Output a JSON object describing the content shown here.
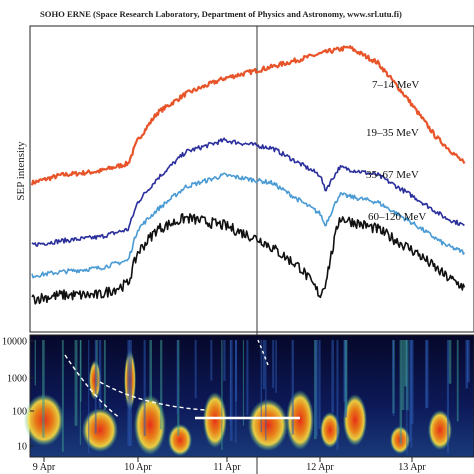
{
  "header": "SOHO ERNE (Space Research Laboratory, Department of Physics and Astronomy, www.srl.utu.fi)",
  "colors": {
    "series_7_14": "#e8542a",
    "series_19_35": "#2a2f9c",
    "series_35_67": "#4a9ad4",
    "series_60_120": "#111111",
    "spectrogram_bg": "#0a0e3a"
  },
  "chart_data": [
    {
      "type": "line",
      "title": "",
      "xlabel": "",
      "ylabel": "SEP intensity",
      "x_range": [
        "9 Apr",
        "13 Apr"
      ],
      "grid": false,
      "legend": "inline labels at right",
      "series": [
        {
          "name": "7–14 MeV",
          "x_days": [
            0,
            0.3,
            0.7,
            1.0,
            1.1,
            1.3,
            1.6,
            2.0,
            2.5,
            2.8,
            3.1,
            3.3,
            3.6,
            3.9,
            4.2,
            4.5
          ],
          "values": [
            3.8,
            4.0,
            4.1,
            4.3,
            4.9,
            5.6,
            6.1,
            6.5,
            6.8,
            7.0,
            7.2,
            7.3,
            6.9,
            6.0,
            5.0,
            4.3
          ]
        },
        {
          "name": "19–35 MeV",
          "x_days": [
            0,
            0.3,
            0.7,
            1.0,
            1.1,
            1.3,
            1.6,
            2.0,
            2.5,
            3.0,
            3.05,
            3.2,
            3.6,
            4.0,
            4.3,
            4.5
          ],
          "values": [
            2.2,
            2.3,
            2.4,
            2.6,
            3.3,
            3.9,
            4.6,
            4.9,
            4.7,
            4.0,
            3.6,
            4.2,
            4.0,
            3.4,
            2.9,
            2.7
          ]
        },
        {
          "name": "35–67 MeV",
          "x_days": [
            0,
            0.3,
            0.7,
            1.0,
            1.1,
            1.3,
            1.6,
            2.0,
            2.5,
            3.0,
            3.05,
            3.2,
            3.6,
            4.0,
            4.3,
            4.5
          ],
          "values": [
            1.4,
            1.5,
            1.6,
            1.8,
            2.6,
            3.1,
            3.7,
            4.0,
            3.8,
            3.0,
            2.7,
            3.5,
            3.3,
            2.7,
            2.2,
            2.0
          ]
        },
        {
          "name": "60–120 MeV",
          "x_days": [
            0,
            0.3,
            0.7,
            1.0,
            1.1,
            1.3,
            1.6,
            2.0,
            2.4,
            2.8,
            3.0,
            3.05,
            3.2,
            3.6,
            4.0,
            4.3,
            4.5
          ],
          "values": [
            0.8,
            0.9,
            0.9,
            1.2,
            2.0,
            2.6,
            2.9,
            2.7,
            2.3,
            1.6,
            0.9,
            1.2,
            2.9,
            2.6,
            2.0,
            1.4,
            1.1
          ]
        }
      ]
    },
    {
      "type": "heatmap",
      "title": "",
      "ylabel": "",
      "yscale": "log",
      "y_ticks": [
        "10000",
        "1000",
        "100",
        "10"
      ],
      "x_ticks": [
        "9 Apr",
        "10 Apr",
        "11 Apr",
        "12 Apr",
        "13 Apr"
      ]
    }
  ]
}
